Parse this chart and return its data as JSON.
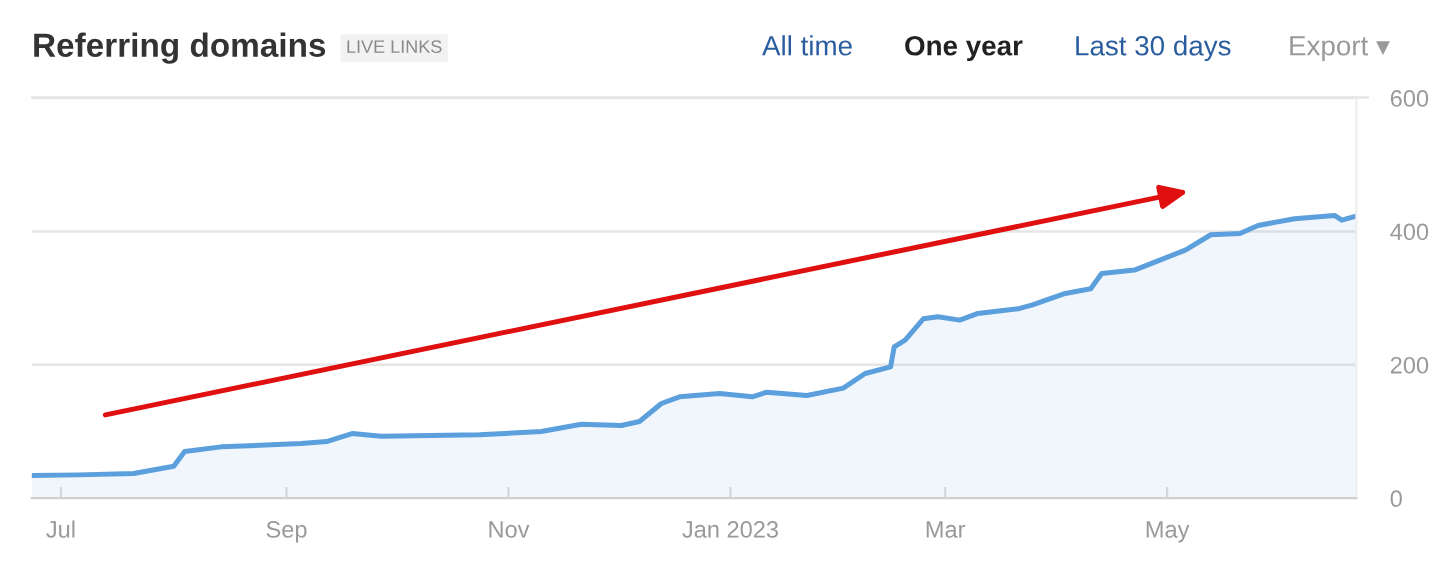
{
  "chart_data": {
    "type": "area",
    "title": "Referring domains",
    "subtitle": "LIVE LINKS",
    "annotations": [
      "All time",
      "One year",
      "Last 30 days",
      "Export ▾"
    ],
    "x": [
      "2022-06-23",
      "2022-07-06",
      "2022-07-21",
      "2022-08-01",
      "2022-08-04",
      "2022-08-14",
      "2022-09-05",
      "2022-09-12",
      "2022-09-19",
      "2022-09-27",
      "2022-10-24",
      "2022-11-10",
      "2022-11-21",
      "2022-12-02",
      "2022-12-07",
      "2022-12-13",
      "2022-12-18",
      "2022-12-29",
      "2023-01-07",
      "2023-01-11",
      "2023-01-22",
      "2023-02-01",
      "2023-02-07",
      "2023-02-14",
      "2023-02-15",
      "2023-02-18",
      "2023-02-23",
      "2023-02-27",
      "2023-03-05",
      "2023-03-10",
      "2023-03-21",
      "2023-03-25",
      "2023-04-03",
      "2023-04-10",
      "2023-04-13",
      "2023-04-22",
      "2023-04-29",
      "2023-05-06",
      "2023-05-13",
      "2023-05-21",
      "2023-05-26",
      "2023-06-05",
      "2023-06-16",
      "2023-06-18",
      "2023-06-22"
    ],
    "series": [
      {
        "color": "#5b9fdc",
        "values": [
          34,
          35,
          37,
          48,
          70,
          77,
          82,
          85,
          97,
          93,
          95,
          100,
          111,
          109,
          115,
          142,
          152,
          157,
          152,
          159,
          154,
          165,
          187,
          197,
          227,
          237,
          269,
          272,
          267,
          277,
          284,
          290,
          307,
          314,
          337,
          342,
          357,
          372,
          395,
          397,
          409,
          419,
          424,
          417,
          423
        ]
      }
    ],
    "xlim": [
      "2022-06-23",
      "2023-06-22"
    ],
    "xticks": [
      {
        "value": "2022-07-01",
        "label": "Jul"
      },
      {
        "value": "2022-09-01",
        "label": "Sep"
      },
      {
        "value": "2022-11-01",
        "label": "Nov"
      },
      {
        "value": "2023-01-01",
        "label": "Jan 2023"
      },
      {
        "value": "2023-03-01",
        "label": "Mar"
      },
      {
        "value": "2023-05-01",
        "label": "May"
      }
    ],
    "ylim": [
      0,
      600
    ],
    "yticks": [
      0,
      200,
      400,
      600
    ],
    "grid": "y",
    "legend": false,
    "marker": "none",
    "line_style": "solid"
  }
}
